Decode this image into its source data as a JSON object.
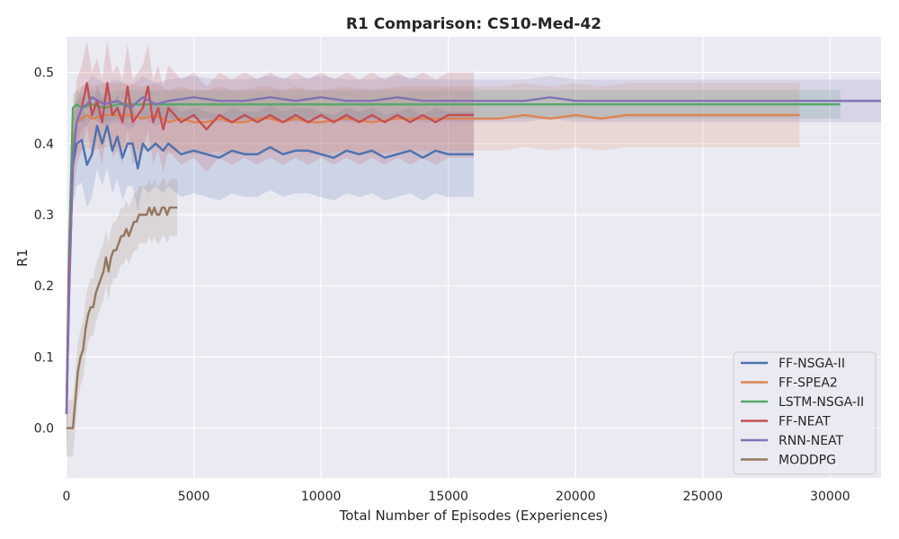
{
  "chart_data": {
    "type": "line",
    "title": "R1 Comparison: CS10-Med-42",
    "xlabel": "Total Number of Episodes (Experiences)",
    "ylabel": "R1",
    "xlim": [
      0,
      32000
    ],
    "ylim": [
      -0.07,
      0.55
    ],
    "xticks": [
      0,
      5000,
      10000,
      15000,
      20000,
      25000,
      30000
    ],
    "yticks": [
      0.0,
      0.1,
      0.2,
      0.3,
      0.4,
      0.5
    ],
    "grid": true,
    "legend_position": "lower-right",
    "series": [
      {
        "name": "FF-NSGA-II",
        "color": "#4c72b0",
        "x": [
          0,
          100,
          250,
          400,
          600,
          800,
          1000,
          1200,
          1400,
          1600,
          1800,
          2000,
          2200,
          2400,
          2600,
          2800,
          3000,
          3200,
          3500,
          3800,
          4000,
          4500,
          5000,
          5500,
          6000,
          6500,
          7000,
          7500,
          8000,
          8500,
          9000,
          9500,
          10000,
          10500,
          11000,
          11500,
          12000,
          12500,
          13000,
          13500,
          14000,
          14500,
          15000,
          15500,
          16000
        ],
        "y": [
          0.02,
          0.2,
          0.37,
          0.4,
          0.405,
          0.37,
          0.385,
          0.425,
          0.4,
          0.425,
          0.39,
          0.41,
          0.38,
          0.4,
          0.4,
          0.365,
          0.4,
          0.39,
          0.4,
          0.39,
          0.4,
          0.385,
          0.39,
          0.385,
          0.38,
          0.39,
          0.385,
          0.385,
          0.395,
          0.385,
          0.39,
          0.39,
          0.385,
          0.38,
          0.39,
          0.385,
          0.39,
          0.38,
          0.385,
          0.39,
          0.38,
          0.39,
          0.385,
          0.385,
          0.385
        ],
        "band": 0.06
      },
      {
        "name": "FF-SPEA2",
        "color": "#dd8452",
        "x": [
          0,
          100,
          250,
          400,
          600,
          800,
          1000,
          1500,
          2000,
          2500,
          3000,
          3500,
          4000,
          4500,
          5000,
          5500,
          6000,
          6500,
          7000,
          7500,
          8000,
          8500,
          9000,
          9500,
          10000,
          11000,
          12000,
          13000,
          14000,
          15000,
          16000,
          17000,
          18000,
          19000,
          20000,
          21000,
          22000,
          23000,
          24000,
          25000,
          26000,
          27000,
          28000,
          28800
        ],
        "y": [
          0.02,
          0.2,
          0.4,
          0.43,
          0.435,
          0.44,
          0.435,
          0.44,
          0.44,
          0.44,
          0.435,
          0.44,
          0.43,
          0.435,
          0.43,
          0.43,
          0.435,
          0.43,
          0.43,
          0.435,
          0.435,
          0.43,
          0.435,
          0.43,
          0.43,
          0.435,
          0.43,
          0.435,
          0.435,
          0.435,
          0.435,
          0.435,
          0.44,
          0.435,
          0.44,
          0.435,
          0.44,
          0.44,
          0.44,
          0.44,
          0.44,
          0.44,
          0.44,
          0.44
        ],
        "band": 0.045
      },
      {
        "name": "LSTM-NSGA-II",
        "color": "#55a868",
        "x": [
          0,
          100,
          250,
          400,
          600,
          1000,
          1500,
          2000,
          3000,
          4000,
          5000,
          6000,
          7000,
          8000,
          9000,
          10000,
          11000,
          12000,
          13000,
          14000,
          15000,
          16000,
          17000,
          18000,
          19000,
          20000,
          21000,
          22000,
          23000,
          24000,
          25000,
          26000,
          27000,
          28000,
          29000,
          30000,
          30400
        ],
        "y": [
          0.03,
          0.25,
          0.45,
          0.455,
          0.45,
          0.455,
          0.45,
          0.455,
          0.455,
          0.455,
          0.455,
          0.455,
          0.455,
          0.455,
          0.455,
          0.455,
          0.455,
          0.455,
          0.455,
          0.455,
          0.455,
          0.455,
          0.455,
          0.455,
          0.455,
          0.455,
          0.455,
          0.455,
          0.455,
          0.455,
          0.455,
          0.455,
          0.455,
          0.455,
          0.455,
          0.455,
          0.455
        ],
        "band": 0.02
      },
      {
        "name": "FF-NEAT",
        "color": "#c44e52",
        "x": [
          0,
          100,
          250,
          400,
          600,
          800,
          1000,
          1200,
          1400,
          1600,
          1800,
          2000,
          2200,
          2400,
          2600,
          2800,
          3000,
          3200,
          3400,
          3600,
          3800,
          4000,
          4500,
          5000,
          5500,
          6000,
          6500,
          7000,
          7500,
          8000,
          8500,
          9000,
          9500,
          10000,
          10500,
          11000,
          11500,
          12000,
          12500,
          13000,
          13500,
          14000,
          14500,
          15000,
          15500,
          16000
        ],
        "y": [
          0.02,
          0.22,
          0.38,
          0.43,
          0.45,
          0.485,
          0.44,
          0.46,
          0.43,
          0.485,
          0.44,
          0.45,
          0.43,
          0.48,
          0.43,
          0.44,
          0.45,
          0.48,
          0.43,
          0.45,
          0.42,
          0.45,
          0.43,
          0.44,
          0.42,
          0.44,
          0.43,
          0.44,
          0.43,
          0.44,
          0.43,
          0.44,
          0.43,
          0.44,
          0.43,
          0.44,
          0.43,
          0.44,
          0.43,
          0.44,
          0.43,
          0.44,
          0.43,
          0.44,
          0.44,
          0.44
        ],
        "band": 0.06
      },
      {
        "name": "RNN-NEAT",
        "color": "#8172b3",
        "x": [
          0,
          100,
          250,
          400,
          600,
          800,
          1000,
          1500,
          2000,
          2500,
          3000,
          3500,
          4000,
          5000,
          6000,
          7000,
          8000,
          9000,
          10000,
          11000,
          12000,
          13000,
          14000,
          15000,
          16000,
          17000,
          18000,
          19000,
          20000,
          21000,
          22000,
          23000,
          24000,
          25000,
          26000,
          27000,
          28000,
          29000,
          30000,
          31000,
          32000
        ],
        "y": [
          0.02,
          0.18,
          0.38,
          0.43,
          0.45,
          0.455,
          0.465,
          0.455,
          0.46,
          0.45,
          0.465,
          0.455,
          0.46,
          0.465,
          0.46,
          0.46,
          0.465,
          0.46,
          0.465,
          0.46,
          0.46,
          0.465,
          0.46,
          0.46,
          0.46,
          0.46,
          0.46,
          0.465,
          0.46,
          0.46,
          0.46,
          0.46,
          0.46,
          0.46,
          0.46,
          0.46,
          0.46,
          0.46,
          0.46,
          0.46,
          0.46
        ],
        "band": 0.03
      },
      {
        "name": "MODDPG",
        "color": "#937860",
        "x": [
          0,
          150,
          250,
          350,
          450,
          550,
          650,
          750,
          850,
          950,
          1050,
          1150,
          1250,
          1350,
          1450,
          1550,
          1650,
          1750,
          1850,
          1950,
          2050,
          2150,
          2250,
          2350,
          2450,
          2550,
          2650,
          2750,
          2850,
          2950,
          3050,
          3150,
          3250,
          3350,
          3450,
          3550,
          3650,
          3750,
          3850,
          3950,
          4050,
          4150,
          4250,
          4350
        ],
        "y": [
          0.0,
          0.0,
          0.0,
          0.04,
          0.08,
          0.1,
          0.11,
          0.14,
          0.16,
          0.17,
          0.17,
          0.19,
          0.2,
          0.21,
          0.22,
          0.24,
          0.22,
          0.24,
          0.25,
          0.25,
          0.26,
          0.27,
          0.27,
          0.28,
          0.27,
          0.28,
          0.29,
          0.29,
          0.3,
          0.3,
          0.3,
          0.3,
          0.31,
          0.3,
          0.31,
          0.3,
          0.3,
          0.31,
          0.31,
          0.3,
          0.31,
          0.31,
          0.31,
          0.31
        ],
        "band": 0.04
      }
    ]
  }
}
